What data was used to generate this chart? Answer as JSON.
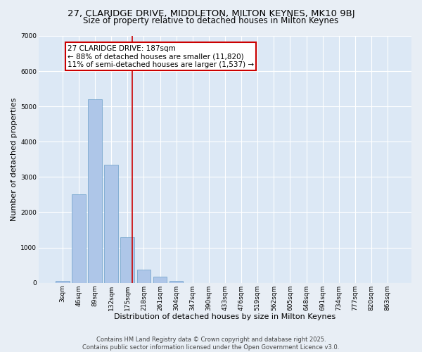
{
  "title_line1": "27, CLARIDGE DRIVE, MIDDLETON, MILTON KEYNES, MK10 9BJ",
  "title_line2": "Size of property relative to detached houses in Milton Keynes",
  "xlabel": "Distribution of detached houses by size in Milton Keynes",
  "ylabel": "Number of detached properties",
  "categories": [
    "3sqm",
    "46sqm",
    "89sqm",
    "132sqm",
    "175sqm",
    "218sqm",
    "261sqm",
    "304sqm",
    "347sqm",
    "390sqm",
    "433sqm",
    "476sqm",
    "519sqm",
    "562sqm",
    "605sqm",
    "648sqm",
    "691sqm",
    "734sqm",
    "777sqm",
    "820sqm",
    "863sqm"
  ],
  "values": [
    50,
    2500,
    5200,
    3350,
    1300,
    380,
    170,
    60,
    0,
    0,
    0,
    0,
    0,
    0,
    0,
    0,
    0,
    0,
    0,
    0,
    0
  ],
  "bar_color": "#aec6e8",
  "bar_edge_color": "#6a9fc8",
  "vline_color": "#cc0000",
  "annotation_text": "27 CLARIDGE DRIVE: 187sqm\n← 88% of detached houses are smaller (11,820)\n11% of semi-detached houses are larger (1,537) →",
  "annotation_box_color": "#cc0000",
  "ylim": [
    0,
    7000
  ],
  "yticks": [
    0,
    1000,
    2000,
    3000,
    4000,
    5000,
    6000,
    7000
  ],
  "background_color": "#dce8f5",
  "grid_color": "#ffffff",
  "fig_background": "#e8eef5",
  "footer_line1": "Contains HM Land Registry data © Crown copyright and database right 2025.",
  "footer_line2": "Contains public sector information licensed under the Open Government Licence v3.0.",
  "title_fontsize": 9.5,
  "subtitle_fontsize": 8.5,
  "axis_label_fontsize": 8,
  "tick_fontsize": 6.5,
  "annotation_fontsize": 7.5,
  "footer_fontsize": 6
}
